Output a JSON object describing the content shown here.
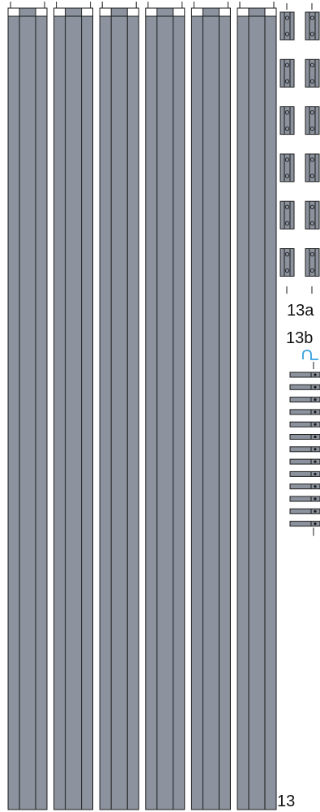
{
  "labels": {
    "main": "13",
    "part_a": "13a",
    "part_b": "13b"
  },
  "counts": {
    "long_strips": 6,
    "short_pieces_rows": 6,
    "short_pieces_cols": 2,
    "small_bars": 13
  },
  "colors": {
    "fill": "#8c939e",
    "stroke": "#1a1a1a",
    "cap": "#ffffff",
    "accent": "#3aa0e0"
  }
}
